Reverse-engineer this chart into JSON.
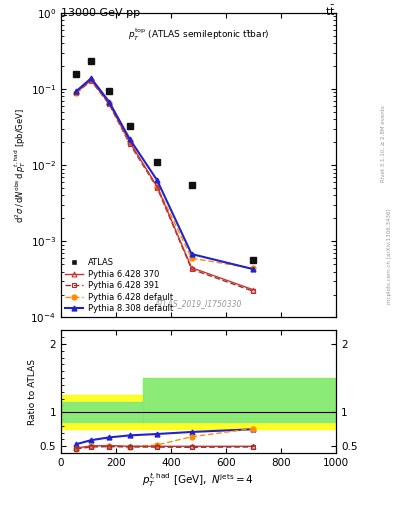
{
  "atlas_x": [
    55,
    110,
    175,
    250,
    350,
    475,
    700
  ],
  "atlas_y": [
    0.155,
    0.235,
    0.095,
    0.033,
    0.011,
    0.0055,
    0.00057
  ],
  "py6_370_x": [
    55,
    110,
    175,
    250,
    350,
    475,
    700
  ],
  "py6_370_y": [
    0.09,
    0.13,
    0.065,
    0.02,
    0.0052,
    0.00045,
    0.00023
  ],
  "py6_391_x": [
    55,
    110,
    175,
    250,
    350,
    475,
    700
  ],
  "py6_391_y": [
    0.088,
    0.128,
    0.063,
    0.019,
    0.005,
    0.00043,
    0.00022
  ],
  "py6_def_x": [
    55,
    110,
    175,
    250,
    350,
    475,
    700
  ],
  "py6_def_y": [
    0.088,
    0.13,
    0.065,
    0.02,
    0.0052,
    0.0006,
    0.00044
  ],
  "py8_def_x": [
    55,
    110,
    175,
    250,
    350,
    475,
    700
  ],
  "py8_def_y": [
    0.093,
    0.138,
    0.068,
    0.022,
    0.0063,
    0.00068,
    0.00043
  ],
  "ratio_py6_370": [
    0.475,
    0.505,
    0.51,
    0.5,
    0.5,
    0.5,
    0.5
  ],
  "ratio_py6_391": [
    0.462,
    0.49,
    0.495,
    0.49,
    0.488,
    0.485,
    0.49
  ],
  "ratio_py6_def": [
    0.46,
    0.5,
    0.51,
    0.495,
    0.52,
    0.64,
    0.76
  ],
  "ratio_py8_def": [
    0.53,
    0.59,
    0.63,
    0.66,
    0.68,
    0.71,
    0.75
  ],
  "color_py6_370": "#CC3333",
  "color_py6_391": "#993333",
  "color_py6_def": "#FF8C00",
  "color_py8_def": "#2222CC",
  "color_atlas": "#111111",
  "xlim": [
    0,
    1000
  ],
  "ylim_main": [
    0.0001,
    1.0
  ],
  "ylim_ratio": [
    0.4,
    2.2
  ],
  "band1_xlo": 0,
  "band1_xhi": 300,
  "band2_xlo": 300,
  "band2_xhi": 1000,
  "band1_yellow_lo": 0.75,
  "band1_yellow_hi": 1.25,
  "band1_green_lo": 0.85,
  "band1_green_hi": 1.15,
  "band2_yellow_lo": 0.75,
  "band2_yellow_hi": 1.5,
  "band2_green_lo": 0.85,
  "band2_green_hi": 1.5
}
